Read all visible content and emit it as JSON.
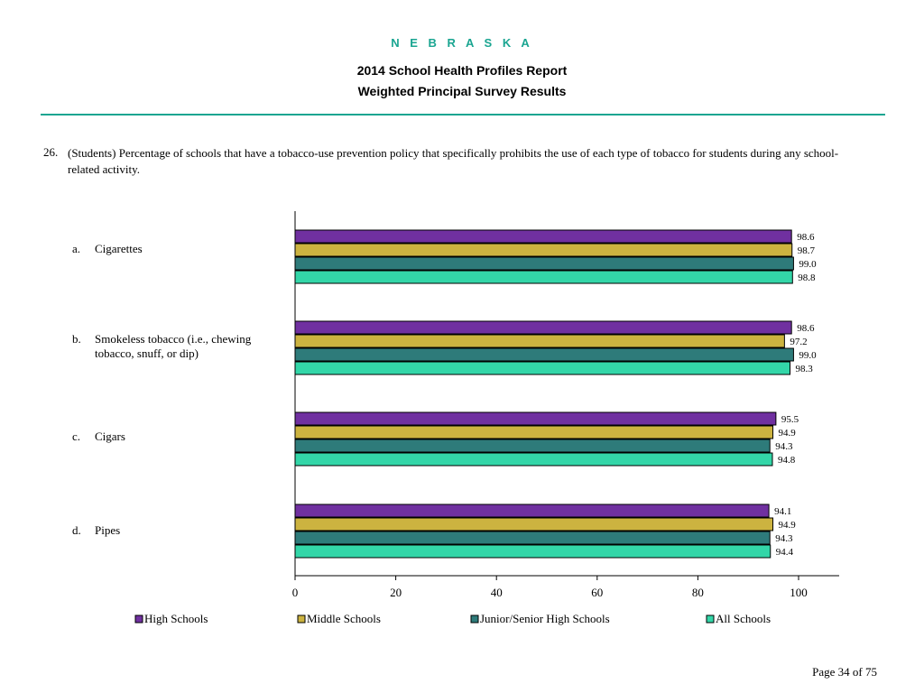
{
  "header": {
    "state": "N E B R A S K A",
    "title1": "2014 School Health Profiles Report",
    "title2": "Weighted Principal Survey Results"
  },
  "question": {
    "number": "26.",
    "text": "(Students) Percentage of schools that have a tobacco-use prevention policy that specifically prohibits the use of each type of tobacco for students during any school-related activity."
  },
  "categories": [
    {
      "letter": "a.",
      "label": "Cigarettes"
    },
    {
      "letter": "b.",
      "label": "Smokeless tobacco (i.e., chewing tobacco, snuff, or dip)"
    },
    {
      "letter": "c.",
      "label": "Cigars"
    },
    {
      "letter": "d.",
      "label": "Pipes"
    }
  ],
  "chart_data": {
    "type": "bar",
    "orientation": "horizontal",
    "categories": [
      "Cigarettes",
      "Smokeless tobacco (i.e., chewing tobacco, snuff, or dip)",
      "Cigars",
      "Pipes"
    ],
    "series": [
      {
        "name": "High Schools",
        "color": "#7030a0",
        "values": [
          98.6,
          98.6,
          95.5,
          94.1
        ]
      },
      {
        "name": "Middle Schools",
        "color": "#ccb340",
        "values": [
          98.7,
          97.2,
          94.9,
          94.9
        ]
      },
      {
        "name": "Junior/Senior High Schools",
        "color": "#2e7b7a",
        "values": [
          99.0,
          99.0,
          94.3,
          94.3
        ]
      },
      {
        "name": "All Schools",
        "color": "#33d6a8",
        "values": [
          98.8,
          98.3,
          94.8,
          94.4
        ]
      }
    ],
    "xlim": [
      0,
      100
    ],
    "xticks": [
      "0",
      "20",
      "40",
      "60",
      "80",
      "100"
    ],
    "legend_position": "bottom",
    "grid": false
  },
  "footer": {
    "page": "Page 34 of 75"
  }
}
